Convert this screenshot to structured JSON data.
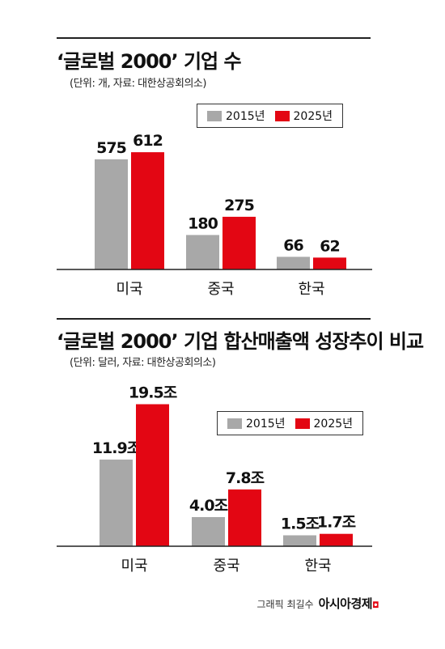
{
  "chart_data": [
    {
      "type": "bar",
      "title": "‘글로벌 2000’ 기업 수",
      "subtitle": "(단위: 개, 자료: 대한상공회의소)",
      "categories": [
        "미국",
        "중국",
        "한국"
      ],
      "series": [
        {
          "name": "2015년",
          "values": [
            575,
            180,
            66
          ],
          "labels": [
            "575",
            "180",
            "66"
          ],
          "color": "#a8a8a8"
        },
        {
          "name": "2025년",
          "values": [
            612,
            275,
            62
          ],
          "labels": [
            "612",
            "275",
            "62"
          ],
          "color": "#e30613"
        }
      ],
      "ylim": [
        0,
        700
      ],
      "legend": "top-right",
      "grid": false
    },
    {
      "type": "bar",
      "title": "‘글로벌 2000’ 기업 합산매출액 성장추이 비교",
      "subtitle": "(단위: 달러, 자료: 대한상공회의소)",
      "categories": [
        "미국",
        "중국",
        "한국"
      ],
      "series": [
        {
          "name": "2015년",
          "values": [
            11.9,
            4.0,
            1.5
          ],
          "labels": [
            "11.9조",
            "4.0조",
            "1.5조"
          ],
          "color": "#a8a8a8"
        },
        {
          "name": "2025년",
          "values": [
            19.5,
            7.8,
            1.7
          ],
          "labels": [
            "19.5조",
            "7.8조",
            "1.7조"
          ],
          "color": "#e30613"
        }
      ],
      "ylim": [
        0,
        20
      ],
      "legend": "top-right",
      "grid": false
    }
  ],
  "credit": {
    "author": "그래픽 최길수",
    "brand": "아시아경제"
  }
}
